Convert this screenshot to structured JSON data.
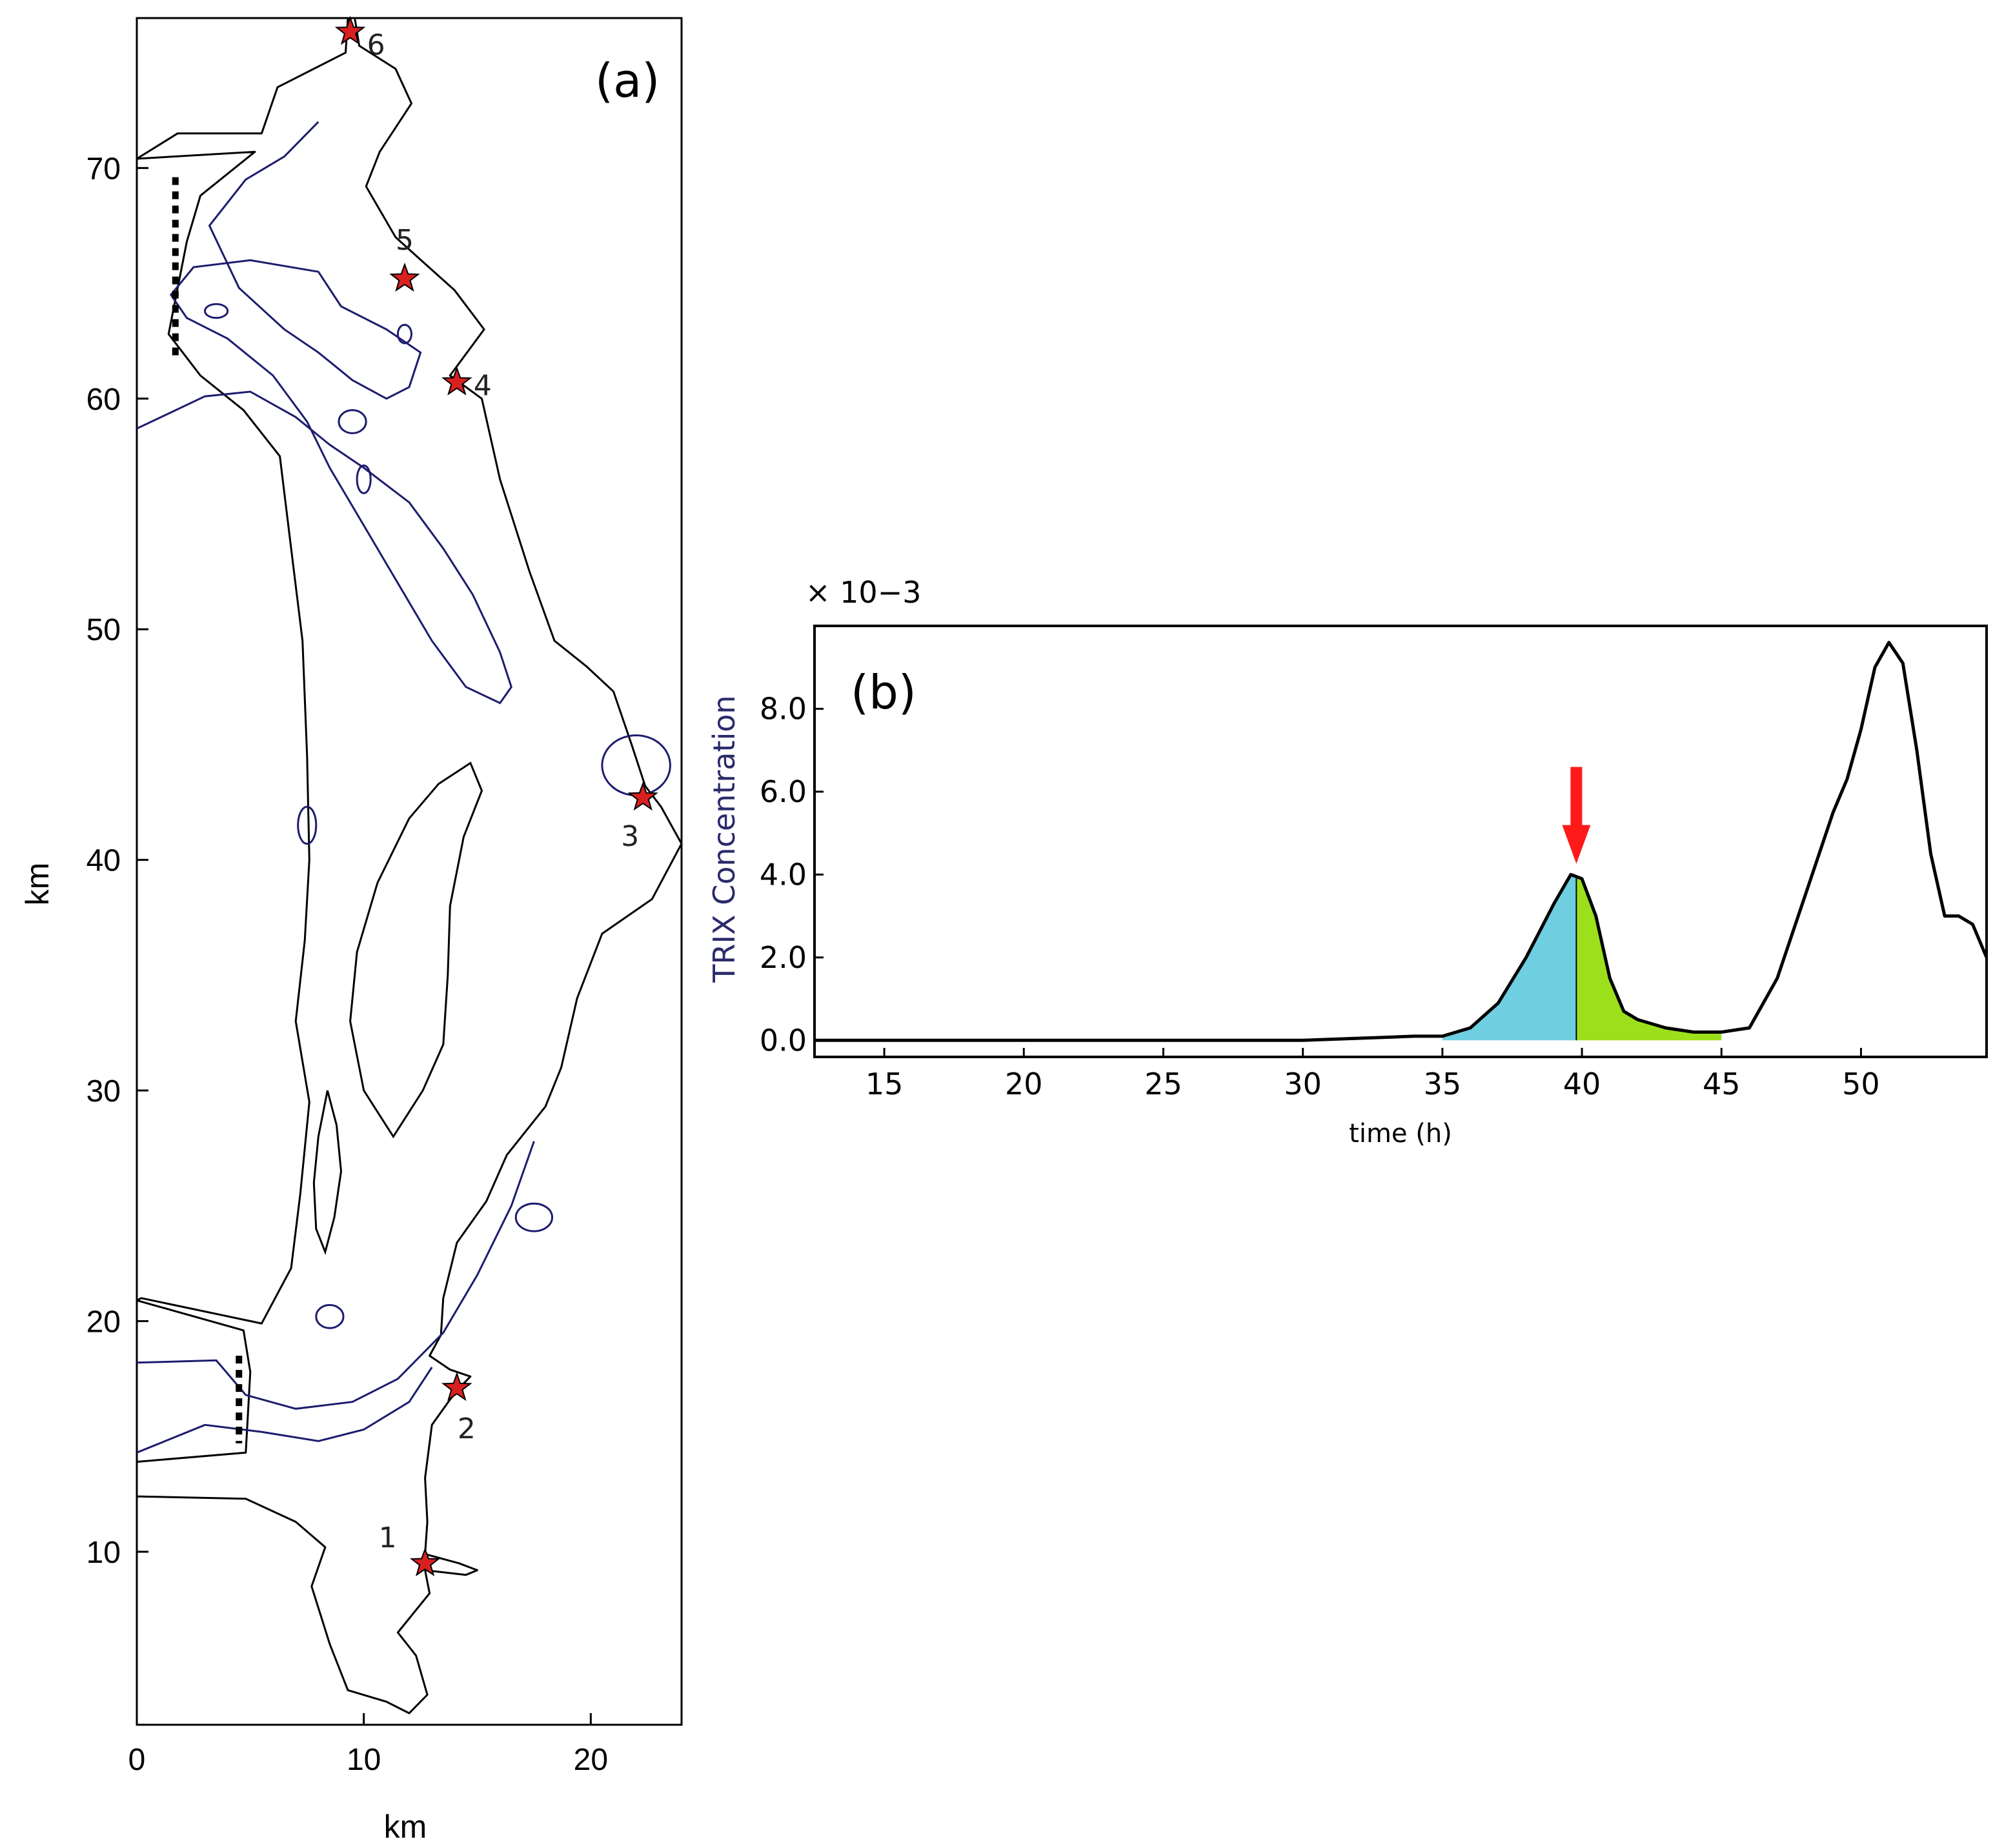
{
  "chart_data": [
    {
      "type": "map",
      "panel_label": "(a)",
      "xlabel": "km",
      "ylabel": "km",
      "xlim": [
        0,
        24
      ],
      "ylim": [
        2.5,
        76.5
      ],
      "xticks": [
        0,
        10,
        20
      ],
      "yticks": [
        10,
        20,
        30,
        40,
        50,
        60,
        70
      ],
      "sites": [
        {
          "label": "1",
          "x": 12.7,
          "y": 9.5
        },
        {
          "label": "2",
          "x": 14.1,
          "y": 17.1
        },
        {
          "label": "3",
          "x": 22.3,
          "y": 42.7
        },
        {
          "label": "4",
          "x": 14.1,
          "y": 60.7
        },
        {
          "label": "5",
          "x": 11.8,
          "y": 65.2
        },
        {
          "label": "6",
          "x": 9.4,
          "y": 75.9
        }
      ],
      "colors": {
        "coast": "#000000",
        "isobath": "#1c1c6e",
        "site": "#d92020",
        "boundary": "#000000"
      }
    },
    {
      "type": "area",
      "panel_label": "(b)",
      "xlabel": "time (h)",
      "ylabel": "TRIX Concentration",
      "y_multiplier": "× 10−3",
      "xlim": [
        12.5,
        54.5
      ],
      "ylim": [
        -0.4,
        10
      ],
      "xticks": [
        15,
        20,
        25,
        30,
        35,
        40,
        45,
        50
      ],
      "yticks": [
        0.0,
        2.0,
        4.0,
        6.0,
        8.0
      ],
      "ytick_labels": [
        "0.0",
        "2.0",
        "4.0",
        "6.0",
        "8.0"
      ],
      "series": [
        {
          "x": [
            12.5,
            20,
            30,
            34,
            35,
            36,
            37,
            38,
            39,
            39.6,
            40,
            40.5,
            41,
            41.5,
            42,
            43,
            44,
            45,
            46,
            47,
            48,
            49,
            49.5,
            50,
            50.5,
            51,
            51.5,
            52,
            52.5,
            53,
            53.5,
            54,
            54.5
          ],
          "y": [
            0.0,
            0.0,
            0.0,
            0.1,
            0.1,
            0.3,
            0.9,
            2.0,
            3.3,
            4.0,
            3.9,
            3.0,
            1.5,
            0.7,
            0.5,
            0.3,
            0.2,
            0.2,
            0.3,
            1.5,
            3.5,
            5.5,
            6.3,
            7.5,
            9.0,
            9.6,
            9.1,
            7.0,
            4.5,
            3.0,
            3.0,
            2.8,
            2.0
          ]
        }
      ],
      "shaded_regions": [
        {
          "from": 35,
          "to": 39.8,
          "color": "#6fcfe0"
        },
        {
          "from": 39.8,
          "to": 45,
          "color": "#9be01a"
        }
      ],
      "marker": {
        "x": 39.8,
        "color": "#ff1a1a"
      }
    }
  ]
}
